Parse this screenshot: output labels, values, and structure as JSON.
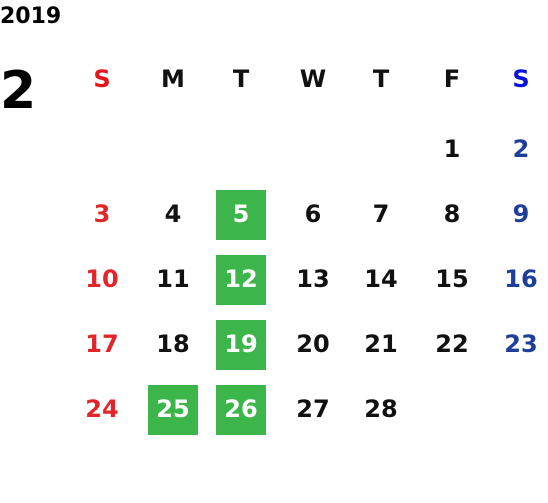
{
  "year": "2019",
  "month": "2",
  "weekdays": [
    "S",
    "M",
    "T",
    "W",
    "T",
    "F",
    "S"
  ],
  "weeks": [
    [
      null,
      null,
      null,
      null,
      null,
      {
        "label": "1"
      },
      {
        "label": "2"
      }
    ],
    [
      {
        "label": "3"
      },
      {
        "label": "4"
      },
      {
        "label": "5",
        "highlight": true
      },
      {
        "label": "6"
      },
      {
        "label": "7"
      },
      {
        "label": "8"
      },
      {
        "label": "9"
      }
    ],
    [
      {
        "label": "10"
      },
      {
        "label": "11"
      },
      {
        "label": "12",
        "highlight": true
      },
      {
        "label": "13"
      },
      {
        "label": "14"
      },
      {
        "label": "15"
      },
      {
        "label": "16"
      }
    ],
    [
      {
        "label": "17"
      },
      {
        "label": "18"
      },
      {
        "label": "19",
        "highlight": true
      },
      {
        "label": "20"
      },
      {
        "label": "21"
      },
      {
        "label": "22"
      },
      {
        "label": "23"
      }
    ],
    [
      {
        "label": "24"
      },
      {
        "label": "25",
        "highlight": true
      },
      {
        "label": "26",
        "highlight": true
      },
      {
        "label": "27"
      },
      {
        "label": "28"
      },
      null,
      null
    ]
  ]
}
